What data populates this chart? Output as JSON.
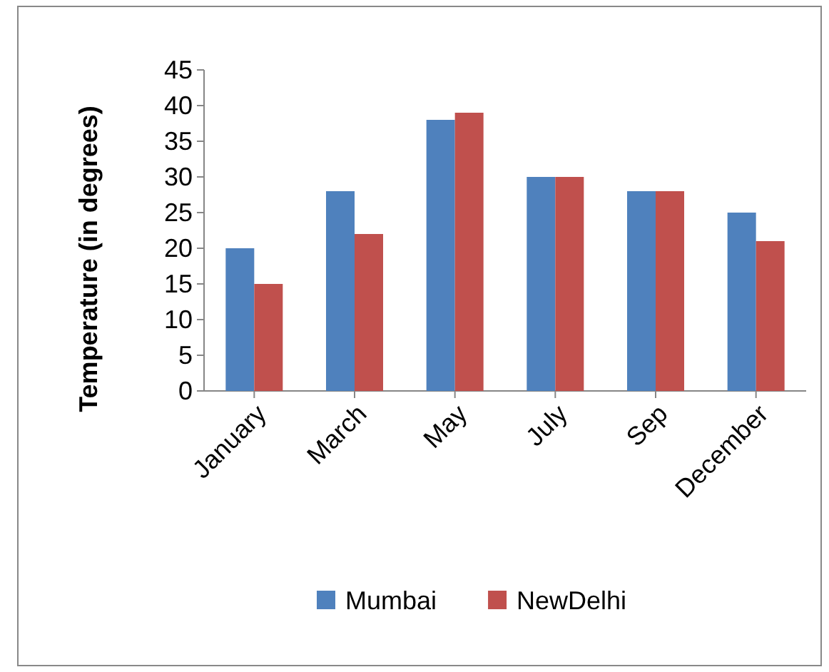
{
  "chart_data": {
    "type": "bar",
    "ylabel": "Temperature (in degrees)",
    "categories": [
      "January",
      "March",
      "May",
      "July",
      "Sep",
      "December"
    ],
    "series": [
      {
        "name": "Mumbai",
        "color": "#4f81bd",
        "values": [
          20,
          28,
          38,
          30,
          28,
          25
        ]
      },
      {
        "name": "NewDelhi",
        "color": "#c0504d",
        "values": [
          15,
          22,
          39,
          30,
          28,
          21
        ]
      }
    ],
    "ylim": [
      0,
      45
    ],
    "yticks": [
      0,
      5,
      10,
      15,
      20,
      25,
      30,
      35,
      40,
      45
    ],
    "legend": "bottom",
    "grid": false
  }
}
